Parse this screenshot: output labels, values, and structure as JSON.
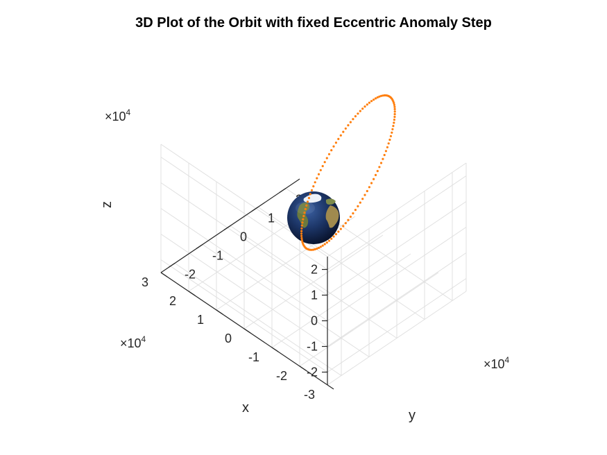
{
  "chart_data": {
    "type": "scatter3d",
    "title": "3D Plot of the Orbit with fixed Eccentric Anomaly Step",
    "xlabel": "x",
    "ylabel": "y",
    "zlabel": "z",
    "xlim": [
      -30000,
      30000
    ],
    "ylim": [
      -25000,
      25000
    ],
    "zlim": [
      -25000,
      25000
    ],
    "view": {
      "azimuth": -45,
      "elevation": 35
    },
    "grid": true,
    "x_ticks": [
      "-3",
      "-2",
      "-1",
      "0",
      "1",
      "2",
      "3"
    ],
    "y_ticks": [
      "-2",
      "-1",
      "0",
      "1",
      "2"
    ],
    "z_ticks": [
      "-2",
      "-1",
      "0",
      "1",
      "2"
    ],
    "x_multiplier": {
      "base": "×10",
      "exp": "4"
    },
    "y_multiplier": {
      "base": "×10",
      "exp": "4"
    },
    "z_multiplier": {
      "base": "×10",
      "exp": "4"
    },
    "orbit": {
      "color": "#ff7f0e",
      "marker": "dot",
      "a_km": 26600,
      "e": 0.74,
      "inclination_deg": 63.4,
      "raan_deg": 45,
      "arg_perigee_deg": 270,
      "point_count": 120
    },
    "central_body": {
      "name": "Earth",
      "radius_km": 6378
    }
  }
}
